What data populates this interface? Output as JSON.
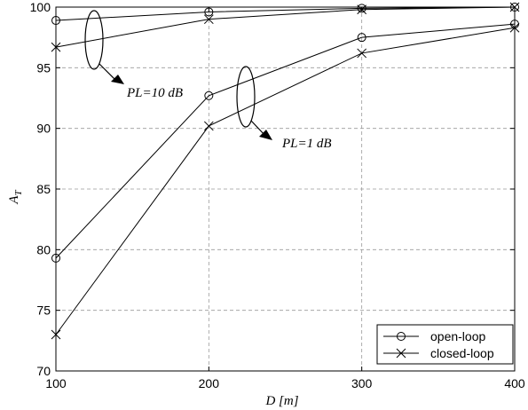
{
  "chart_data": {
    "type": "line",
    "xlabel": "D [m]",
    "ylabel_main": "A",
    "ylabel_sub": "T",
    "x": [
      100,
      200,
      300,
      400
    ],
    "xlim": [
      100,
      400
    ],
    "ylim": [
      70,
      100
    ],
    "xticks": [
      100,
      200,
      300,
      400
    ],
    "yticks": [
      70,
      75,
      80,
      85,
      90,
      95,
      100
    ],
    "grid": true,
    "legend_position": "bottom-right",
    "legend": [
      "open-loop",
      "closed-loop"
    ],
    "series": [
      {
        "name": "open-loop",
        "marker": "circle",
        "group": "PL=1 dB",
        "values": [
          79.3,
          92.7,
          97.5,
          98.6
        ]
      },
      {
        "name": "closed-loop",
        "marker": "x",
        "group": "PL=1 dB",
        "values": [
          73.0,
          90.2,
          96.2,
          98.3
        ]
      },
      {
        "name": "open-loop",
        "marker": "circle",
        "group": "PL=10 dB",
        "values": [
          98.9,
          99.6,
          99.9,
          100.0
        ]
      },
      {
        "name": "closed-loop",
        "marker": "x",
        "group": "PL=10 dB",
        "values": [
          96.7,
          99.0,
          99.8,
          100.0
        ]
      }
    ],
    "annotations": [
      {
        "text": "PL=10 dB",
        "target": "PL=10 dB"
      },
      {
        "text": "PL=1 dB",
        "target": "PL=1 dB"
      }
    ]
  }
}
